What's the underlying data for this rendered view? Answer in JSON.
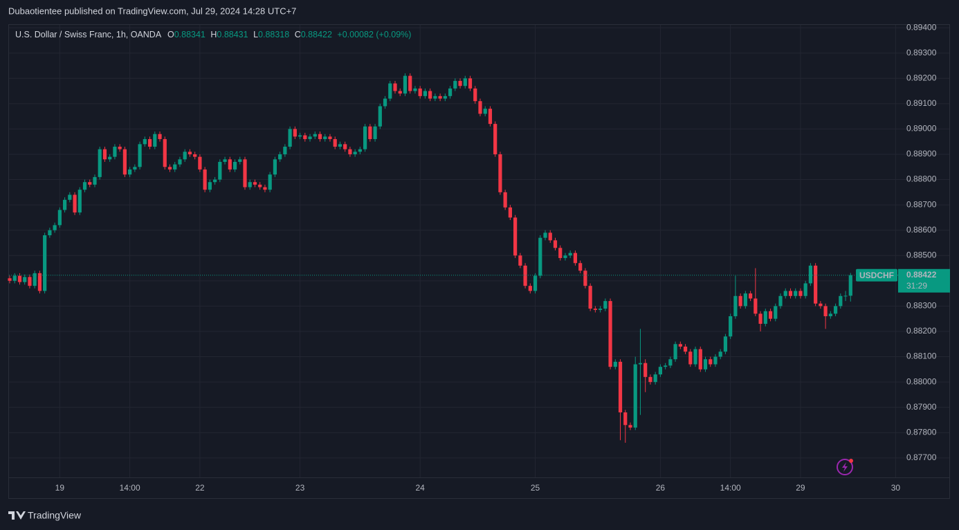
{
  "header": {
    "author_line": "Dubaotientee published on TradingView.com, Jul 29, 2024 14:28 UTC+7"
  },
  "footer": {
    "brand": "TradingView"
  },
  "chart_data": {
    "type": "candlestick",
    "symbol_title": "U.S. Dollar / Swiss Franc, 1h, OANDA",
    "legend_labels": [
      "O",
      "H",
      "L",
      "C"
    ],
    "change": "+0.00082 (+0.09%)",
    "countdown": "31:29",
    "up_color": "#089981",
    "down_color": "#f23645",
    "grid": true,
    "ylim": [
      0.87623,
      0.89414
    ],
    "yticks": [
      {
        "value": 0.894,
        "label": "0.89400"
      },
      {
        "value": 0.893,
        "label": "0.89300"
      },
      {
        "value": 0.892,
        "label": "0.89200"
      },
      {
        "value": 0.891,
        "label": "0.89100"
      },
      {
        "value": 0.89,
        "label": "0.89000"
      },
      {
        "value": 0.889,
        "label": "0.88900"
      },
      {
        "value": 0.888,
        "label": "0.88800"
      },
      {
        "value": 0.887,
        "label": "0.88700"
      },
      {
        "value": 0.886,
        "label": "0.88600"
      },
      {
        "value": 0.885,
        "label": "0.88500"
      },
      {
        "value": 0.884,
        "label": "0.88400"
      },
      {
        "value": 0.883,
        "label": "0.88300"
      },
      {
        "value": 0.882,
        "label": "0.88200"
      },
      {
        "value": 0.881,
        "label": "0.88100"
      },
      {
        "value": 0.88,
        "label": "0.88000"
      },
      {
        "value": 0.879,
        "label": "0.87900"
      },
      {
        "value": 0.878,
        "label": "0.87800"
      },
      {
        "value": 0.877,
        "label": "0.87700"
      }
    ],
    "categories": [
      null,
      null,
      null,
      null,
      null,
      null,
      null,
      null,
      null,
      null,
      "19",
      null,
      null,
      null,
      null,
      null,
      null,
      null,
      null,
      null,
      null,
      null,
      null,
      null,
      "14:00",
      null,
      null,
      null,
      null,
      null,
      null,
      null,
      null,
      null,
      null,
      null,
      null,
      null,
      "22",
      null,
      null,
      null,
      null,
      null,
      null,
      null,
      null,
      null,
      null,
      null,
      null,
      null,
      null,
      null,
      null,
      null,
      null,
      null,
      "23",
      null,
      null,
      null,
      null,
      null,
      null,
      null,
      null,
      null,
      null,
      null,
      null,
      null,
      null,
      null,
      null,
      null,
      null,
      null,
      null,
      null,
      null,
      null,
      "24",
      null,
      null,
      null,
      null,
      null,
      null,
      null,
      null,
      null,
      null,
      null,
      null,
      null,
      null,
      null,
      null,
      null,
      null,
      null,
      null,
      null,
      null,
      "25",
      null,
      null,
      null,
      null,
      null,
      null,
      null,
      null,
      null,
      null,
      null,
      null,
      null,
      null,
      null,
      null,
      null,
      null,
      null,
      null,
      null,
      null,
      null,
      null,
      "26",
      null,
      null,
      null,
      null,
      null,
      null,
      null,
      null,
      null,
      null,
      null,
      null,
      null,
      "14:00",
      null,
      null,
      null,
      null,
      null,
      null,
      null,
      null,
      null,
      null,
      null,
      null,
      null,
      "29",
      null,
      null,
      null,
      null,
      null,
      null,
      null,
      null,
      null,
      null,
      null,
      null,
      null,
      null,
      null,
      null,
      null,
      null,
      "30"
    ],
    "series": [
      {
        "name": "USDCHF",
        "open": [
          0.8841,
          0.884,
          0.8842,
          0.88395,
          0.88415,
          0.8838,
          0.8843,
          0.8836,
          0.8858,
          0.886,
          0.8862,
          0.8868,
          0.8872,
          0.8874,
          0.8867,
          0.8876,
          0.8879,
          0.8878,
          0.8881,
          0.8892,
          0.8888,
          0.8889,
          0.8893,
          0.8892,
          0.8882,
          0.8884,
          0.8885,
          0.8894,
          0.8896,
          0.8893,
          0.8898,
          0.8896,
          0.8885,
          0.8884,
          0.8886,
          0.8888,
          0.8891,
          0.889,
          0.8889,
          0.8884,
          0.8876,
          0.8879,
          0.888,
          0.8887,
          0.8888,
          0.8884,
          0.8887,
          0.8888,
          0.8877,
          0.8879,
          0.8878,
          0.8877,
          0.8876,
          0.8882,
          0.8888,
          0.889,
          0.8893,
          0.89,
          0.8897,
          0.88975,
          0.8896,
          0.8897,
          0.8898,
          0.8896,
          0.8897,
          0.8896,
          0.8893,
          0.8894,
          0.8892,
          0.889,
          0.8891,
          0.8892,
          0.8901,
          0.8896,
          0.8901,
          0.8909,
          0.8912,
          0.8918,
          0.8915,
          0.8914,
          0.8921,
          0.8915,
          0.8916,
          0.8913,
          0.8915,
          0.8912,
          0.8913,
          0.8912,
          0.8913,
          0.8916,
          0.8919,
          0.8917,
          0.892,
          0.8916,
          0.8911,
          0.8906,
          0.8908,
          0.8902,
          0.889,
          0.8875,
          0.8869,
          0.8865,
          0.885,
          0.8846,
          0.8838,
          0.8836,
          0.8842,
          0.8857,
          0.8859,
          0.8856,
          0.8853,
          0.8849,
          0.885,
          0.8851,
          0.8847,
          0.8844,
          0.8838,
          0.8829,
          0.88285,
          0.8829,
          0.8832,
          0.8806,
          0.8808,
          0.8788,
          0.8783,
          0.8782,
          0.8807,
          0.88075,
          0.8802,
          0.88,
          0.8803,
          0.8806,
          0.88065,
          0.8809,
          0.8815,
          0.8814,
          0.8812,
          0.8807,
          0.8813,
          0.8805,
          0.8809,
          0.8807,
          0.881,
          0.8812,
          0.8818,
          0.8826,
          0.8834,
          0.883,
          0.8835,
          0.8833,
          0.8827,
          0.8823,
          0.8828,
          0.8825,
          0.883,
          0.8834,
          0.8836,
          0.8834,
          0.8836,
          0.8834,
          0.8839,
          0.8846,
          0.8831,
          0.883,
          0.8826,
          0.8827,
          0.883,
          0.8834,
          0.88341,
          null,
          null,
          null,
          null,
          null,
          null,
          null,
          null,
          null
        ],
        "high": [
          0.8842,
          0.8843,
          0.8843,
          0.88425,
          0.88425,
          0.8844,
          0.8844,
          0.8859,
          0.8861,
          0.8863,
          0.8869,
          0.8873,
          0.8875,
          0.8875,
          0.8877,
          0.888,
          0.888,
          0.8882,
          0.8893,
          0.8893,
          0.889,
          0.8894,
          0.8894,
          0.8893,
          0.8885,
          0.8886,
          0.8895,
          0.8897,
          0.8897,
          0.8899,
          0.8899,
          0.8897,
          0.8886,
          0.8887,
          0.8889,
          0.8892,
          0.8892,
          0.8891,
          0.889,
          0.8885,
          0.888,
          0.8881,
          0.8888,
          0.8889,
          0.8889,
          0.8888,
          0.8889,
          0.8889,
          0.888,
          0.888,
          0.8879,
          0.8878,
          0.8883,
          0.8889,
          0.8891,
          0.8894,
          0.8901,
          0.8901,
          0.88985,
          0.88985,
          0.8898,
          0.8899,
          0.8899,
          0.8898,
          0.8898,
          0.8897,
          0.8895,
          0.8895,
          0.8893,
          0.8892,
          0.8893,
          0.8902,
          0.8902,
          0.8902,
          0.891,
          0.8913,
          0.8919,
          0.8919,
          0.8916,
          0.8922,
          0.8922,
          0.8917,
          0.8917,
          0.8916,
          0.8916,
          0.8914,
          0.8914,
          0.8914,
          0.8917,
          0.892,
          0.892,
          0.8921,
          0.8921,
          0.8917,
          0.8912,
          0.8909,
          0.8909,
          0.8903,
          0.8891,
          0.8876,
          0.887,
          0.8866,
          0.8851,
          0.8847,
          0.8839,
          0.8843,
          0.8858,
          0.886,
          0.886,
          0.8857,
          0.8854,
          0.8851,
          0.8852,
          0.8852,
          0.8848,
          0.8845,
          0.8839,
          0.883,
          0.883,
          0.8833,
          0.8833,
          0.8809,
          0.8809,
          0.8789,
          0.8784,
          0.881,
          0.8821,
          0.8809,
          0.8803,
          0.8804,
          0.8807,
          0.88075,
          0.881,
          0.8816,
          0.8816,
          0.8815,
          0.8813,
          0.8814,
          0.8814,
          0.881,
          0.881,
          0.8811,
          0.8813,
          0.8819,
          0.8827,
          0.8842,
          0.8835,
          0.8836,
          0.8836,
          0.8845,
          0.8828,
          0.8829,
          0.8829,
          0.8831,
          0.8835,
          0.8837,
          0.8837,
          0.8837,
          0.8837,
          0.884,
          0.8847,
          0.8847,
          0.8832,
          0.8831,
          0.8828,
          0.8831,
          0.8835,
          0.8836,
          0.88431,
          null,
          null,
          null,
          null,
          null,
          null,
          null,
          null,
          null
        ],
        "low": [
          0.8839,
          0.8839,
          0.88385,
          0.88385,
          0.8837,
          0.8837,
          0.8835,
          0.8835,
          0.8857,
          0.8859,
          0.8861,
          0.8867,
          0.8871,
          0.8866,
          0.8866,
          0.8875,
          0.8877,
          0.8877,
          0.888,
          0.8887,
          0.8887,
          0.8888,
          0.8891,
          0.8881,
          0.8881,
          0.8883,
          0.8884,
          0.8893,
          0.8892,
          0.8892,
          0.8895,
          0.8884,
          0.8883,
          0.8883,
          0.8885,
          0.8887,
          0.8889,
          0.8888,
          0.8883,
          0.8875,
          0.8875,
          0.8878,
          0.8879,
          0.8886,
          0.8883,
          0.8883,
          0.8886,
          0.8876,
          0.8876,
          0.8877,
          0.8876,
          0.8875,
          0.8875,
          0.8881,
          0.8887,
          0.8889,
          0.8892,
          0.8896,
          0.8896,
          0.8895,
          0.8895,
          0.8896,
          0.8895,
          0.8895,
          0.8895,
          0.8892,
          0.8892,
          0.8891,
          0.8889,
          0.8889,
          0.889,
          0.8891,
          0.8895,
          0.8895,
          0.89,
          0.8908,
          0.8911,
          0.8914,
          0.8913,
          0.8913,
          0.8914,
          0.8914,
          0.8912,
          0.8912,
          0.8911,
          0.8911,
          0.8911,
          0.8911,
          0.8912,
          0.8915,
          0.8916,
          0.8916,
          0.8915,
          0.891,
          0.8905,
          0.8905,
          0.8901,
          0.8889,
          0.8874,
          0.8868,
          0.8864,
          0.8849,
          0.8845,
          0.8837,
          0.8835,
          0.8835,
          0.8841,
          0.8856,
          0.8855,
          0.8852,
          0.8848,
          0.8848,
          0.8849,
          0.8846,
          0.8843,
          0.8837,
          0.8828,
          0.88275,
          0.88275,
          0.8828,
          0.8805,
          0.8805,
          0.8777,
          0.8776,
          0.8781,
          0.8781,
          0.8787,
          0.8796,
          0.8799,
          0.8799,
          0.8802,
          0.8805,
          0.88055,
          0.8808,
          0.8813,
          0.8811,
          0.8806,
          0.8806,
          0.8804,
          0.8804,
          0.8806,
          0.8806,
          0.8809,
          0.8811,
          0.8817,
          0.8825,
          0.8829,
          0.8829,
          0.8832,
          0.8826,
          0.882,
          0.8822,
          0.8824,
          0.8824,
          0.8829,
          0.8833,
          0.8833,
          0.8833,
          0.8833,
          0.8833,
          0.8838,
          0.883,
          0.8829,
          0.8821,
          0.8825,
          0.8826,
          0.8829,
          0.8832,
          0.88318,
          null,
          null,
          null,
          null,
          null,
          null,
          null,
          null,
          null
        ],
        "close": [
          0.884,
          0.8842,
          0.88395,
          0.88415,
          0.8838,
          0.8843,
          0.8836,
          0.8858,
          0.886,
          0.8862,
          0.8868,
          0.8872,
          0.8874,
          0.8867,
          0.8876,
          0.8879,
          0.8878,
          0.8881,
          0.8892,
          0.8888,
          0.8889,
          0.8893,
          0.8892,
          0.8882,
          0.8884,
          0.8885,
          0.8894,
          0.8896,
          0.8893,
          0.8898,
          0.8896,
          0.8885,
          0.8884,
          0.8886,
          0.8888,
          0.8891,
          0.889,
          0.8889,
          0.8884,
          0.8876,
          0.8879,
          0.888,
          0.8887,
          0.8888,
          0.8884,
          0.8887,
          0.8888,
          0.8877,
          0.8879,
          0.8878,
          0.8877,
          0.8876,
          0.8882,
          0.8888,
          0.889,
          0.8893,
          0.89,
          0.8897,
          0.88975,
          0.8896,
          0.8897,
          0.8898,
          0.8896,
          0.8897,
          0.8896,
          0.8893,
          0.8894,
          0.8892,
          0.889,
          0.8891,
          0.8892,
          0.8901,
          0.8896,
          0.8901,
          0.8909,
          0.8912,
          0.8918,
          0.8915,
          0.8914,
          0.8921,
          0.8915,
          0.8916,
          0.8913,
          0.8915,
          0.8912,
          0.8913,
          0.8912,
          0.8913,
          0.8916,
          0.8919,
          0.8917,
          0.892,
          0.8916,
          0.8911,
          0.8906,
          0.8908,
          0.8902,
          0.889,
          0.8875,
          0.8869,
          0.8865,
          0.885,
          0.8846,
          0.8838,
          0.8836,
          0.8842,
          0.8857,
          0.8859,
          0.8856,
          0.8853,
          0.8849,
          0.885,
          0.8851,
          0.8847,
          0.8844,
          0.8838,
          0.8829,
          0.88285,
          0.8829,
          0.8832,
          0.8806,
          0.8808,
          0.8788,
          0.8783,
          0.8782,
          0.8807,
          0.88075,
          0.8802,
          0.88,
          0.8803,
          0.8806,
          0.88065,
          0.8809,
          0.8815,
          0.8814,
          0.8812,
          0.8807,
          0.8813,
          0.8805,
          0.8809,
          0.8807,
          0.881,
          0.8812,
          0.8818,
          0.8826,
          0.8834,
          0.883,
          0.8835,
          0.8833,
          0.8827,
          0.8823,
          0.8828,
          0.8825,
          0.883,
          0.8834,
          0.8836,
          0.8834,
          0.8836,
          0.8834,
          0.8839,
          0.8846,
          0.8831,
          0.883,
          0.8826,
          0.8827,
          0.883,
          0.8834,
          0.88341,
          0.88422,
          null,
          null,
          null,
          null,
          null,
          null,
          null,
          null,
          null
        ]
      }
    ]
  }
}
